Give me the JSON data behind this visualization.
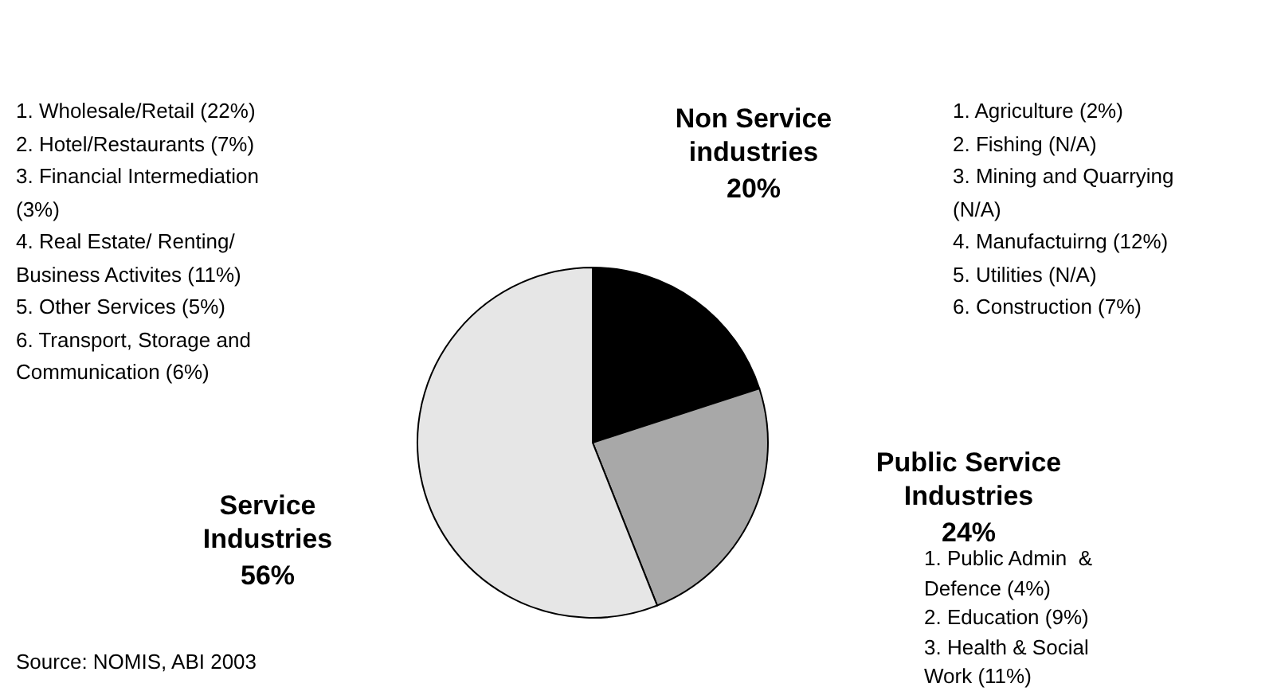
{
  "chart_data": {
    "type": "pie",
    "categories": [
      "Non Service industries",
      "Public Service Industries",
      "Service Industries"
    ],
    "values": [
      20,
      24,
      56
    ],
    "colors": [
      "#000000",
      "#a8a8a8",
      "#e6e6e6"
    ],
    "value_labels": [
      "20%",
      "24%",
      "56%"
    ],
    "legend": false,
    "annotations": [
      "1. Wholesale/Retail (22%)\n2. Hotel/Restaurants (7%)\n3. Financial Intermediation (3%)\n4. Real Estate/ Renting/ Business Activites (11%)\n5. Other Services (5%)\n6. Transport, Storage and Communication (6%)",
      "1. Agriculture (2%)\n2. Fishing (N/A)\n3. Mining and Quarrying (N/A)\n4. Manufactuirng (12%)\n5. Utilities (N/A)\n6. Construction (7%)",
      "1. Public Admin  & Defence (4%)\n2. Education (9%)\n3. Health & Social Work (11%)",
      "Source: NOMIS, ABI 2003"
    ]
  }
}
